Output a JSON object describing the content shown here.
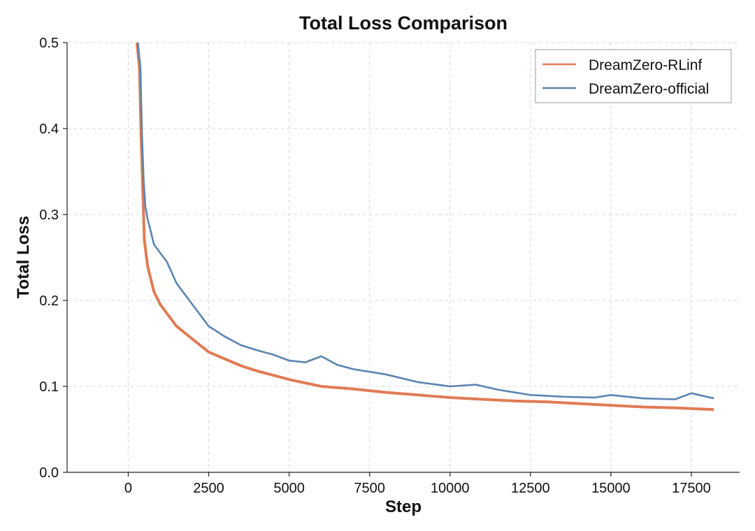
{
  "chart_data": {
    "type": "line",
    "title": "Total Loss Comparison",
    "xlabel": "Step",
    "ylabel": "Total Loss",
    "xlim": [
      -1900,
      19000
    ],
    "ylim": [
      0,
      0.5
    ],
    "xticks": [
      0,
      2500,
      5000,
      7500,
      10000,
      12500,
      15000,
      17500
    ],
    "yticks": [
      0.0,
      0.1,
      0.2,
      0.3,
      0.4,
      0.5
    ],
    "ytick_labels": [
      "0.0",
      "0.1",
      "0.2",
      "0.3",
      "0.4",
      "0.5"
    ],
    "grid": true,
    "legend": "top-right",
    "series": [
      {
        "name": "DreamZero-RLinf",
        "color": "#e07b54",
        "x": [
          270,
          350,
          400,
          450,
          500,
          600,
          700,
          800,
          1000,
          1200,
          1500,
          2000,
          2500,
          3000,
          3500,
          4000,
          5000,
          6000,
          7000,
          8000,
          9000,
          10000,
          11000,
          12000,
          13000,
          14000,
          15000,
          16000,
          17000,
          18200
        ],
        "y": [
          0.5,
          0.47,
          0.39,
          0.33,
          0.27,
          0.24,
          0.225,
          0.21,
          0.195,
          0.185,
          0.17,
          0.155,
          0.14,
          0.132,
          0.124,
          0.118,
          0.108,
          0.1,
          0.097,
          0.093,
          0.09,
          0.087,
          0.085,
          0.083,
          0.082,
          0.08,
          0.078,
          0.076,
          0.075,
          0.073
        ]
      },
      {
        "name": "DreamZero-official",
        "color": "#5b84b1",
        "x": [
          300,
          380,
          430,
          480,
          530,
          600,
          700,
          800,
          1000,
          1200,
          1500,
          2000,
          2500,
          3000,
          3500,
          4000,
          4500,
          5000,
          5500,
          6000,
          6500,
          7000,
          8000,
          9000,
          10000,
          10800,
          11500,
          12500,
          13500,
          14500,
          15000,
          16000,
          17000,
          17500,
          18200
        ],
        "y": [
          0.5,
          0.47,
          0.39,
          0.34,
          0.31,
          0.295,
          0.28,
          0.265,
          0.255,
          0.245,
          0.22,
          0.195,
          0.17,
          0.158,
          0.148,
          0.142,
          0.137,
          0.13,
          0.128,
          0.135,
          0.125,
          0.12,
          0.114,
          0.105,
          0.1,
          0.102,
          0.096,
          0.09,
          0.088,
          0.087,
          0.09,
          0.086,
          0.085,
          0.092,
          0.086
        ]
      }
    ]
  }
}
